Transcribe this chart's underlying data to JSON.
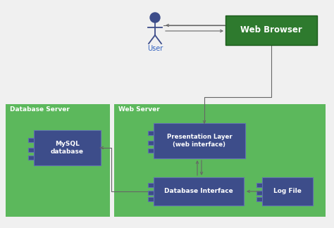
{
  "bg_color": "#f0f0f0",
  "green_bg": "#5cb85c",
  "node_color": "#3d4d8a",
  "node_border": "#6070b0",
  "web_browser_color": "#2e7a2e",
  "arrow_color": "#666666",
  "text_white": "#ffffff",
  "text_blue": "#3060c0",
  "actor_color": "#3d4d8a",
  "db_server_label": "Database Server",
  "web_server_label": "Web Server",
  "mysql_label": "MySQL\ndatabase",
  "presentation_label": "Presentation Layer\n(web interface)",
  "db_interface_label": "Database Interface",
  "log_file_label": "Log File",
  "web_browser_label": "Web Browser",
  "user_label": "User",
  "figw": 4.74,
  "figh": 3.24,
  "dpi": 100
}
